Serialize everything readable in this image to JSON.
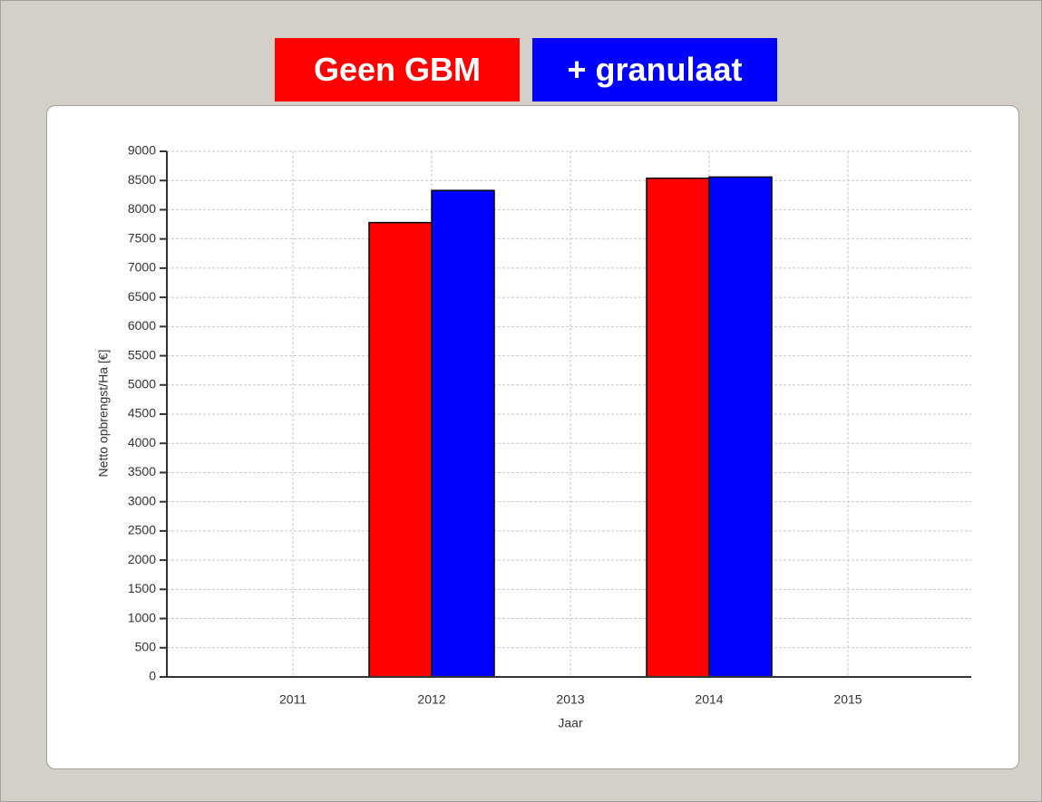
{
  "chart_data": {
    "type": "bar",
    "categories": [
      "2011",
      "2012",
      "2013",
      "2014",
      "2015"
    ],
    "series": [
      {
        "name": "Geen GBM",
        "color": "#ff0000",
        "values": [
          0,
          7780,
          0,
          8540,
          0
        ]
      },
      {
        "name": "+ granulaat",
        "color": "#0000ff",
        "values": [
          0,
          8330,
          0,
          8560,
          0
        ]
      }
    ],
    "ylabel": "Netto opbrengst/Ha [€]",
    "xlabel": "Jaar",
    "ylim": [
      0,
      9000
    ],
    "yticks": [
      0,
      500,
      1000,
      1500,
      2000,
      2500,
      3000,
      3500,
      4000,
      4500,
      5000,
      5500,
      6000,
      6500,
      7000,
      7500,
      8000,
      8500,
      9000
    ],
    "grid": true
  }
}
